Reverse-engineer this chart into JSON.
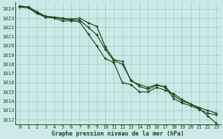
{
  "title": "Graphe pression niveau de la mer (hPa)",
  "bg_color": "#cce8e8",
  "grid_color": "#99ccbb",
  "line_color": "#1a4a1a",
  "xlim": [
    -0.5,
    23.5
  ],
  "ylim": [
    1011.5,
    1024.7
  ],
  "xticks": [
    0,
    1,
    2,
    3,
    4,
    5,
    6,
    7,
    8,
    9,
    10,
    11,
    12,
    13,
    14,
    15,
    16,
    17,
    18,
    19,
    20,
    21,
    22,
    23
  ],
  "yticks": [
    1012,
    1013,
    1014,
    1015,
    1016,
    1017,
    1018,
    1019,
    1020,
    1021,
    1022,
    1023,
    1024
  ],
  "series1": [
    1024.3,
    1024.2,
    1023.7,
    1023.2,
    1023.1,
    1023.0,
    1022.9,
    1023.0,
    1022.5,
    1022.1,
    1019.9,
    1018.5,
    1018.3,
    1016.2,
    1015.8,
    1015.5,
    1015.8,
    1015.5,
    1014.3,
    1013.8,
    1013.5,
    1013.1,
    1012.7,
    1012.5
  ],
  "series2": [
    1024.3,
    1024.2,
    1023.6,
    1023.2,
    1023.1,
    1022.9,
    1022.8,
    1022.8,
    1022.0,
    1021.2,
    1019.6,
    1018.4,
    1018.0,
    1016.3,
    1015.6,
    1015.3,
    1015.7,
    1015.6,
    1014.6,
    1014.0,
    1013.7,
    1013.3,
    1013.0,
    1012.7
  ],
  "series3": [
    1024.2,
    1024.1,
    1023.5,
    1023.1,
    1023.0,
    1022.7,
    1022.7,
    1022.6,
    1021.3,
    1020.0,
    1018.6,
    1018.2,
    1016.0,
    1015.8,
    1015.0,
    1015.0,
    1015.5,
    1015.2,
    1014.8,
    1014.2,
    1013.7,
    1013.2,
    1012.4,
    1011.6
  ],
  "xlabel_fontsize": 6.0,
  "tick_fontsize": 5.2
}
